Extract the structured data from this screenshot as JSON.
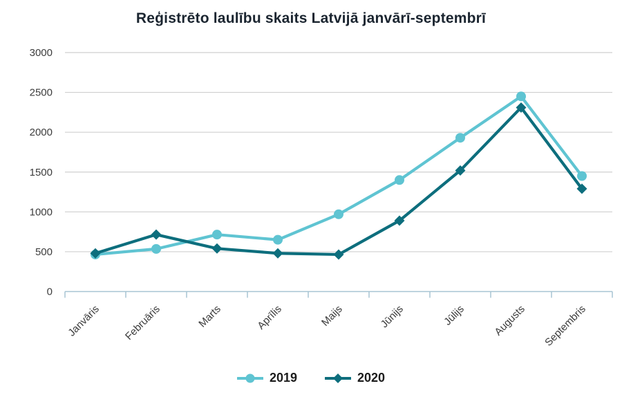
{
  "chart_data": {
    "type": "line",
    "title": "Reģistrēto laulību skaits Latvijā janvārī-septembrī",
    "xlabel": "",
    "ylabel": "",
    "categories": [
      "Janvāris",
      "Februāris",
      "Marts",
      "Aprīlis",
      "Maijs",
      "Jūnijs",
      "Jūlijs",
      "Augusts",
      "Septembris"
    ],
    "series": [
      {
        "name": "2019",
        "marker": "circle",
        "color": "#5fc4d2",
        "values": [
          465,
          535,
          715,
          650,
          970,
          1400,
          1930,
          2450,
          1450
        ]
      },
      {
        "name": "2020",
        "marker": "diamond",
        "color": "#0d6e7d",
        "values": [
          480,
          715,
          540,
          480,
          465,
          890,
          1520,
          2310,
          1290
        ]
      }
    ],
    "ylim": [
      0,
      3000
    ],
    "ytick_step": 500,
    "grid": true,
    "legend_position": "bottom"
  },
  "colors": {
    "grid": "#cfcfcf",
    "axis": "#a7c4d2",
    "tick_text": "#3c3c3c",
    "title_text": "#1b2530",
    "legend_text": "#1c1c1c",
    "background": "#ffffff"
  }
}
